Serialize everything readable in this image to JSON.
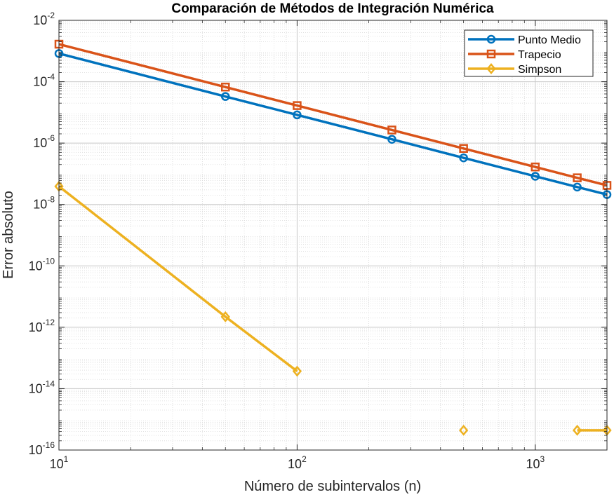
{
  "chart_data": {
    "type": "line",
    "title": "Comparación de Métodos de Integración Numérica",
    "xlabel": "Número de subintervalos (n)",
    "ylabel": "Error absoluto",
    "xscale": "log",
    "yscale": "log",
    "xlim": [
      10,
      2000
    ],
    "ylim": [
      1e-16,
      0.01
    ],
    "grid": true,
    "minor_grid": true,
    "legend_position": "top-right",
    "x_ticks": [
      {
        "value": 10,
        "base": "10",
        "exp": "1"
      },
      {
        "value": 100,
        "base": "10",
        "exp": "2"
      },
      {
        "value": 1000,
        "base": "10",
        "exp": "3"
      }
    ],
    "y_ticks": [
      {
        "value": 1e-16,
        "base": "10",
        "exp": "-16"
      },
      {
        "value": 1e-14,
        "base": "10",
        "exp": "-14"
      },
      {
        "value": 1e-12,
        "base": "10",
        "exp": "-12"
      },
      {
        "value": 1e-10,
        "base": "10",
        "exp": "-10"
      },
      {
        "value": 1e-08,
        "base": "10",
        "exp": "-8"
      },
      {
        "value": 1e-06,
        "base": "10",
        "exp": "-6"
      },
      {
        "value": 0.0001,
        "base": "10",
        "exp": "-4"
      },
      {
        "value": 0.01,
        "base": "10",
        "exp": "-2"
      }
    ],
    "series": [
      {
        "name": "Punto Medio",
        "color": "#0072BD",
        "marker": "circle",
        "points": [
          {
            "x": 10,
            "y": 0.00083
          },
          {
            "x": 50,
            "y": 3.3e-05
          },
          {
            "x": 100,
            "y": 8.3e-06
          },
          {
            "x": 250,
            "y": 1.33e-06
          },
          {
            "x": 500,
            "y": 3.3e-07
          },
          {
            "x": 1000,
            "y": 8.3e-08
          },
          {
            "x": 1500,
            "y": 3.7e-08
          },
          {
            "x": 2000,
            "y": 2.1e-08
          }
        ]
      },
      {
        "name": "Trapecio",
        "color": "#D95319",
        "marker": "square",
        "points": [
          {
            "x": 10,
            "y": 0.00167
          },
          {
            "x": 50,
            "y": 6.7e-05
          },
          {
            "x": 100,
            "y": 1.67e-05
          },
          {
            "x": 250,
            "y": 2.67e-06
          },
          {
            "x": 500,
            "y": 6.7e-07
          },
          {
            "x": 1000,
            "y": 1.67e-07
          },
          {
            "x": 1500,
            "y": 7.4e-08
          },
          {
            "x": 2000,
            "y": 4.2e-08
          }
        ]
      },
      {
        "name": "Simpson",
        "color": "#EDB120",
        "marker": "diamond",
        "segments": [
          [
            {
              "x": 10,
              "y": 3.9e-08
            },
            {
              "x": 50,
              "y": 2.2e-12
            },
            {
              "x": 100,
              "y": 3.7e-14
            }
          ],
          [
            {
              "x": 500,
              "y": 4.4e-16
            }
          ],
          [
            {
              "x": 1500,
              "y": 4.4e-16
            },
            {
              "x": 2000,
              "y": 4.4e-16
            }
          ]
        ]
      }
    ]
  }
}
